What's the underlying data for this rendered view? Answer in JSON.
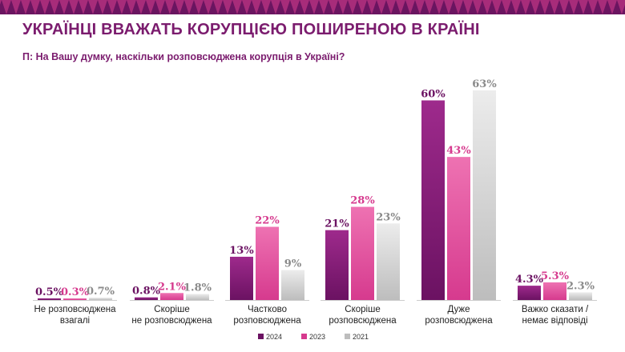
{
  "header": {
    "title": "УКРАЇНЦІ ВВАЖАТЬ КОРУПЦІЄЮ ПОШИРЕНОЮ В КРАЇНІ",
    "question": "П: На Вашу думку, наскільки розповсюджена корупція в Україні?"
  },
  "colors": {
    "brand": "#7b1c6e",
    "band_light": "#b2307f",
    "band_dark": "#6a1560",
    "series_2024": "#6b1262",
    "series_2023": "#d63a8e",
    "series_2021": "#bdbdbd",
    "label_2021": "#8a8a8a"
  },
  "chart_data": {
    "type": "bar",
    "categories": [
      [
        "Не розповсюджена",
        "взагалі"
      ],
      [
        "Скоріше",
        "не розповсюджена"
      ],
      [
        "Частково",
        "розповсюджена"
      ],
      [
        "Скоріше",
        "розповсюджена"
      ],
      [
        "Дуже",
        "розповсюджена"
      ],
      [
        "Важко сказати /",
        "немає відповіді"
      ]
    ],
    "series": [
      {
        "name": "2024",
        "values": [
          0.5,
          0.8,
          13,
          21,
          60,
          4.3
        ],
        "labels": [
          "0.5%",
          "0.8%",
          "13%",
          "21%",
          "60%",
          "4.3%"
        ]
      },
      {
        "name": "2023",
        "values": [
          0.3,
          2.1,
          22,
          28,
          43,
          5.3
        ],
        "labels": [
          "0.3%",
          "2.1%",
          "22%",
          "28%",
          "43%",
          "5.3%"
        ]
      },
      {
        "name": "2021",
        "values": [
          0.7,
          1.8,
          9,
          23,
          63,
          2.3
        ],
        "labels": [
          "0.7%",
          "1.8%",
          "9%",
          "23%",
          "63%",
          "2.3%"
        ]
      }
    ],
    "ylim": [
      0,
      63
    ],
    "grid": false,
    "legend_position": "bottom-center"
  }
}
